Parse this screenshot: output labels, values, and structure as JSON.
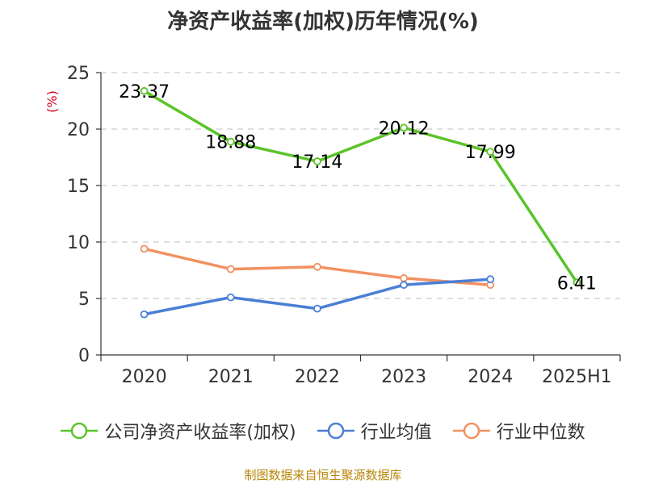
{
  "chart_data": {
    "type": "line",
    "title": "净资产收益率(加权)历年情况(%)",
    "ylabel": "(%)",
    "categories": [
      "2020",
      "2021",
      "2022",
      "2023",
      "2024",
      "2025H1"
    ],
    "ylim": [
      0,
      25
    ],
    "yticks": [
      0,
      5,
      10,
      15,
      20,
      25
    ],
    "grid": true,
    "legend_position": "bottom",
    "series": [
      {
        "name": "公司净资产收益率(加权)",
        "color": "#5bc428",
        "values": [
          23.37,
          18.88,
          17.14,
          20.12,
          17.99,
          6.41
        ],
        "labels": [
          "23.37",
          "18.88",
          "17.14",
          "20.12",
          "17.99",
          "6.41"
        ]
      },
      {
        "name": "行业均值",
        "color": "#4a7fd6",
        "values": [
          3.6,
          5.1,
          4.1,
          6.2,
          6.7,
          null
        ]
      },
      {
        "name": "行业中位数",
        "color": "#f29160",
        "values": [
          9.4,
          7.6,
          7.8,
          6.8,
          6.2,
          null
        ]
      }
    ]
  },
  "source": "制图数据来自恒生聚源数据库"
}
